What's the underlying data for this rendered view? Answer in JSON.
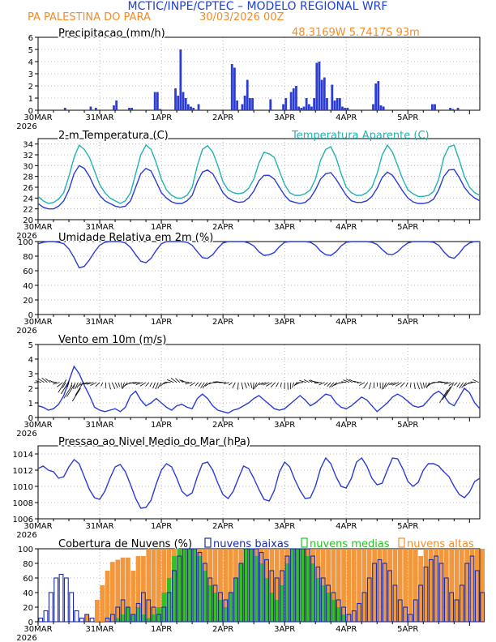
{
  "header": {
    "title": "MCTIC/INPE/CPTEC – MODELO REGIONAL WRF",
    "location": "PA PALESTINA DO PARA",
    "run": "30/03/2026 00Z",
    "coords": "48.3169W 5.7417S 93m"
  },
  "colors": {
    "blue": "#2b3bd6",
    "cyan": "#22b2b0",
    "orange": "#f28c28",
    "green": "#21c321",
    "navy": "#1a2aa8",
    "title": "#1f3fd0"
  },
  "x_axis": {
    "labels": [
      "30MAR",
      "31MAR",
      "1APR",
      "2APR",
      "3APR",
      "4APR",
      "5APR"
    ],
    "year": "2026"
  },
  "chart_data": [
    {
      "id": "precip",
      "type": "bar",
      "title": "Precipitacao (mm/h)",
      "ylim": [
        0,
        6
      ],
      "yticks": [
        0,
        1,
        2,
        3,
        4,
        5,
        6
      ],
      "hours": [
        10,
        20,
        22,
        29,
        30,
        35,
        36,
        45,
        46,
        47,
        53,
        54,
        55,
        56,
        57,
        58,
        59,
        60,
        62,
        75,
        76,
        77,
        79,
        80,
        81,
        82,
        83,
        90,
        95,
        96,
        98,
        99,
        100,
        101,
        102,
        103,
        104,
        105,
        106,
        107,
        108,
        109,
        110,
        111,
        112,
        114,
        115,
        116,
        117,
        118,
        119,
        120,
        130,
        131,
        132,
        133,
        134,
        153,
        154,
        160,
        161,
        163
      ],
      "values": [
        0.2,
        0.3,
        0.2,
        0.4,
        0.8,
        0.2,
        0.2,
        1.5,
        1.5,
        0.1,
        1.8,
        1.2,
        5.0,
        1.5,
        1.0,
        0.5,
        0.3,
        0.2,
        0.5,
        3.8,
        3.5,
        0.8,
        0.5,
        1.2,
        2.5,
        1.0,
        1.0,
        0.9,
        0.5,
        1.0,
        1.5,
        1.8,
        2.0,
        0.3,
        0.2,
        0.3,
        1.0,
        0.5,
        0.3,
        1.0,
        3.9,
        4.0,
        2.5,
        2.7,
        1.0,
        2.1,
        0.8,
        1.0,
        1.0,
        0.3,
        0.2,
        0.2,
        0.5,
        2.2,
        2.4,
        0.4,
        0.3,
        0.5,
        0.5,
        0.2,
        0.1,
        0.2
      ]
    },
    {
      "id": "temp",
      "type": "line",
      "title": "2-m Temperatura (C)",
      "subtitle": "Temperatura Aparente (C)",
      "ylim": [
        20,
        35
      ],
      "yticks": [
        20,
        22,
        24,
        26,
        28,
        30,
        32,
        34
      ],
      "series": [
        {
          "name": "Temperatura Aparente",
          "color": "cyan",
          "values": [
            24.3,
            23.5,
            23.0,
            23.2,
            23.8,
            25.0,
            28.0,
            31.5,
            33.8,
            33.0,
            31.5,
            29.0,
            26.5,
            25.0,
            24.0,
            23.5,
            23.0,
            23.5,
            25.0,
            28.5,
            32.0,
            33.8,
            33.0,
            30.5,
            27.5,
            25.5,
            24.5,
            24.0,
            24.0,
            24.5,
            26.0,
            30.0,
            33.0,
            33.7,
            32.5,
            30.0,
            27.0,
            25.5,
            25.0,
            24.8,
            25.0,
            25.8,
            27.5,
            30.5,
            32.5,
            32.2,
            31.5,
            29.0,
            26.5,
            25.0,
            24.5,
            24.5,
            24.8,
            25.5,
            27.5,
            31.0,
            33.0,
            33.5,
            31.5,
            28.5,
            26.0,
            25.0,
            24.5,
            24.5,
            25.0,
            26.0,
            28.5,
            32.0,
            33.8,
            32.5,
            30.0,
            27.5,
            25.5,
            24.8,
            24.3,
            24.3,
            24.5,
            25.2,
            27.5,
            31.5,
            33.5,
            33.8,
            31.0,
            28.0,
            26.0,
            25.0,
            24.5
          ]
        },
        {
          "name": "2-m Temperatura",
          "color": "blue",
          "values": [
            23.0,
            22.3,
            22.0,
            22.0,
            22.5,
            23.5,
            25.5,
            28.5,
            30.0,
            29.5,
            28.0,
            26.0,
            24.5,
            23.5,
            23.0,
            22.5,
            22.3,
            22.5,
            23.5,
            26.0,
            28.5,
            29.5,
            29.0,
            27.0,
            25.0,
            24.0,
            23.3,
            23.0,
            23.0,
            23.5,
            24.5,
            27.0,
            28.8,
            29.2,
            28.5,
            26.8,
            25.0,
            24.0,
            23.5,
            23.2,
            23.3,
            24.0,
            25.3,
            27.2,
            28.2,
            28.2,
            27.5,
            26.0,
            24.5,
            23.5,
            23.2,
            23.0,
            23.2,
            24.0,
            25.5,
            27.5,
            28.5,
            28.7,
            27.5,
            26.0,
            24.5,
            23.5,
            23.2,
            23.2,
            23.5,
            24.3,
            25.8,
            27.8,
            28.8,
            28.2,
            26.8,
            25.3,
            24.0,
            23.3,
            23.0,
            23.0,
            23.2,
            23.8,
            25.5,
            28.0,
            29.2,
            29.3,
            27.8,
            26.0,
            24.8,
            24.0,
            23.5
          ]
        }
      ]
    },
    {
      "id": "rh",
      "type": "line",
      "title": "Umidade Relativa em 2m (%)",
      "ylim": [
        0,
        100
      ],
      "yticks": [
        0,
        20,
        40,
        60,
        80,
        100
      ],
      "series": [
        {
          "name": "Umidade Relativa",
          "color": "blue",
          "values": [
            97,
            99,
            100,
            100,
            99,
            97,
            90,
            78,
            64,
            66,
            75,
            86,
            95,
            99,
            100,
            100,
            100,
            98,
            92,
            82,
            73,
            71,
            77,
            88,
            97,
            100,
            100,
            100,
            100,
            99,
            95,
            86,
            78,
            77,
            82,
            91,
            98,
            100,
            100,
            100,
            100,
            98,
            94,
            86,
            81,
            82,
            85,
            93,
            99,
            100,
            100,
            100,
            100,
            99,
            95,
            87,
            82,
            81,
            86,
            94,
            99,
            100,
            100,
            100,
            100,
            99,
            96,
            89,
            83,
            82,
            86,
            93,
            98,
            100,
            100,
            100,
            100,
            99,
            95,
            86,
            79,
            77,
            84,
            93,
            98,
            100,
            100
          ]
        }
      ]
    },
    {
      "id": "wind",
      "type": "line",
      "title": "Vento em 10m (m/s)",
      "ylim": [
        0,
        5
      ],
      "yticks": [
        0,
        1,
        2,
        3,
        4,
        5
      ],
      "series": [
        {
          "name": "Vento em 10m",
          "color": "blue",
          "values": [
            0.8,
            0.7,
            0.5,
            0.6,
            0.9,
            1.5,
            2.5,
            3.5,
            3.0,
            2.2,
            1.5,
            0.7,
            0.5,
            0.4,
            0.5,
            0.6,
            0.4,
            0.7,
            1.5,
            1.8,
            1.2,
            0.8,
            1.0,
            1.3,
            1.0,
            0.7,
            0.5,
            0.8,
            0.9,
            0.7,
            0.6,
            1.3,
            1.6,
            1.3,
            0.8,
            0.5,
            0.4,
            0.3,
            0.5,
            0.6,
            0.8,
            1.0,
            1.3,
            1.5,
            1.2,
            0.9,
            0.6,
            0.5,
            0.6,
            0.9,
            1.2,
            1.5,
            1.2,
            0.8,
            1.0,
            1.3,
            1.6,
            1.5,
            1.0,
            0.7,
            0.6,
            0.8,
            1.1,
            1.4,
            1.2,
            0.8,
            0.4,
            0.7,
            1.0,
            1.4,
            1.6,
            1.4,
            1.1,
            0.8,
            0.7,
            0.8,
            1.2,
            1.6,
            1.8,
            1.5,
            1.0,
            0.8,
            1.4,
            2.0,
            1.7,
            1.0,
            0.6
          ]
        }
      ]
    },
    {
      "id": "pressure",
      "type": "line",
      "title": "Pressao ao Nivel Medio do Mar (hPa)",
      "ylim": [
        1006,
        1015
      ],
      "yticks": [
        1006,
        1008,
        1010,
        1012,
        1014
      ],
      "series": [
        {
          "name": "Pressao",
          "color": "blue",
          "values": [
            1012.2,
            1012.5,
            1012.0,
            1011.8,
            1011.0,
            1011.2,
            1012.4,
            1013.3,
            1012.8,
            1011.2,
            1009.6,
            1008.6,
            1008.4,
            1009.4,
            1011.0,
            1012.4,
            1012.7,
            1011.8,
            1010.2,
            1008.5,
            1007.3,
            1007.4,
            1008.3,
            1010.3,
            1012.0,
            1012.8,
            1012.4,
            1011.0,
            1009.4,
            1008.8,
            1009.2,
            1011.2,
            1012.8,
            1013.0,
            1012.0,
            1010.4,
            1009.0,
            1008.5,
            1009.4,
            1011.0,
            1012.5,
            1012.2,
            1011.0,
            1009.6,
            1008.4,
            1008.2,
            1009.5,
            1011.8,
            1013.0,
            1012.4,
            1010.8,
            1009.5,
            1008.5,
            1008.6,
            1010.0,
            1012.2,
            1013.5,
            1012.8,
            1011.2,
            1010.0,
            1009.8,
            1011.0,
            1013.0,
            1013.5,
            1012.5,
            1011.0,
            1010.2,
            1010.4,
            1012.0,
            1013.5,
            1013.4,
            1012.2,
            1010.6,
            1010.0,
            1010.5,
            1012.0,
            1012.8,
            1012.8,
            1012.5,
            1011.8,
            1011.2,
            1010.0,
            1009.0,
            1008.6,
            1009.3,
            1010.6,
            1011.0
          ]
        }
      ]
    },
    {
      "id": "clouds",
      "type": "bar",
      "title": "Cobertura de Nuvens (%)",
      "legend": [
        "nuvens baixas",
        "nuvens medias",
        "nuvens altas"
      ],
      "ylim": [
        0,
        100
      ],
      "yticks": [
        0,
        20,
        40,
        60,
        80,
        100
      ],
      "series": [
        {
          "name": "nuvens altas",
          "color": "orange",
          "values": [
            0,
            0,
            0,
            0,
            0,
            0,
            0,
            0,
            0,
            10,
            0,
            30,
            50,
            70,
            82,
            85,
            88,
            88,
            70,
            90,
            90,
            100,
            100,
            100,
            100,
            100,
            100,
            100,
            100,
            100,
            100,
            100,
            100,
            100,
            100,
            100,
            100,
            100,
            100,
            100,
            100,
            100,
            100,
            100,
            100,
            100,
            100,
            100,
            100,
            100,
            100,
            100,
            100,
            100,
            100,
            100,
            100,
            100,
            100,
            100,
            100,
            100,
            100,
            100,
            100,
            100,
            100,
            100,
            100,
            100,
            100,
            100,
            100,
            100,
            90,
            100,
            100,
            100,
            100,
            100,
            100,
            100,
            100,
            100,
            100,
            100,
            100
          ]
        },
        {
          "name": "nuvens medias",
          "color": "green",
          "values": [
            0,
            0,
            0,
            0,
            0,
            0,
            0,
            0,
            0,
            0,
            0,
            0,
            0,
            0,
            0,
            5,
            10,
            20,
            10,
            20,
            10,
            5,
            10,
            20,
            40,
            60,
            90,
            100,
            100,
            100,
            100,
            90,
            70,
            50,
            40,
            30,
            20,
            40,
            60,
            80,
            100,
            100,
            90,
            80,
            60,
            40,
            30,
            50,
            80,
            100,
            100,
            100,
            90,
            80,
            60,
            50,
            40,
            30,
            20,
            10,
            0,
            0,
            0,
            0,
            0,
            0,
            0,
            0,
            0,
            0,
            0,
            0,
            0,
            0,
            0,
            0,
            0,
            0,
            0,
            0,
            0,
            0,
            0,
            0,
            0,
            0,
            0
          ]
        },
        {
          "name": "nuvens baixas",
          "color": "blue",
          "values": [
            5,
            15,
            40,
            60,
            65,
            60,
            40,
            15,
            5,
            10,
            5,
            0,
            0,
            5,
            10,
            20,
            30,
            20,
            10,
            25,
            40,
            30,
            20,
            10,
            20,
            40,
            70,
            90,
            100,
            100,
            100,
            95,
            80,
            60,
            50,
            40,
            30,
            40,
            60,
            80,
            100,
            100,
            100,
            95,
            85,
            70,
            60,
            70,
            90,
            100,
            100,
            100,
            100,
            90,
            75,
            60,
            50,
            40,
            30,
            20,
            10,
            15,
            25,
            40,
            60,
            80,
            85,
            80,
            70,
            50,
            30,
            20,
            10,
            30,
            50,
            75,
            85,
            90,
            80,
            60,
            40,
            30,
            50,
            80,
            90,
            70,
            40
          ]
        }
      ]
    }
  ]
}
